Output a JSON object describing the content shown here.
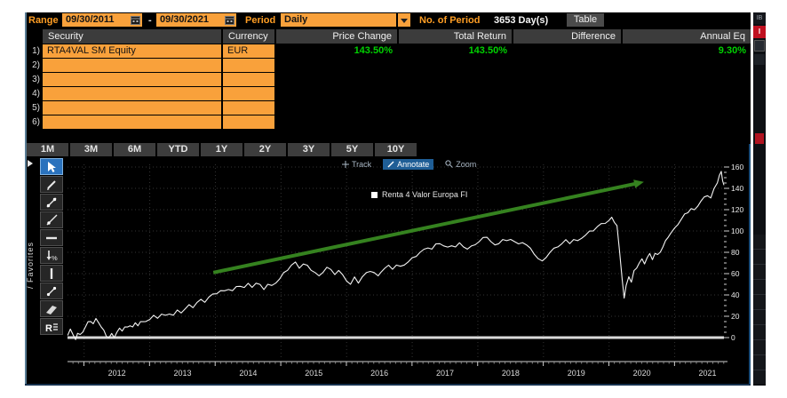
{
  "window": {
    "ib_label": "IB",
    "chat_header_fragment": "I"
  },
  "topbar": {
    "range_label": "Range",
    "range_start": "09/30/2011",
    "range_separator": "-",
    "range_end": "09/30/2021",
    "period_label": "Period",
    "period_value": "Daily",
    "num_period_label": "No. of Period",
    "num_period_value": "3653 Day(s)",
    "table_button": "Table"
  },
  "table": {
    "headers": [
      "Security",
      "Currency",
      "Price Change",
      "Total Return",
      "Difference",
      "Annual Eq"
    ],
    "rows": [
      {
        "num": "1)",
        "security": "RTA4VAL SM Equity",
        "currency": "EUR",
        "price_change": "143.50%",
        "total_return": "143.50%",
        "difference": "",
        "annual_eq": "9.30%"
      },
      {
        "num": "2)",
        "security": "",
        "currency": "",
        "price_change": "",
        "total_return": "",
        "difference": "",
        "annual_eq": ""
      },
      {
        "num": "3)",
        "security": "",
        "currency": "",
        "price_change": "",
        "total_return": "",
        "difference": "",
        "annual_eq": ""
      },
      {
        "num": "4)",
        "security": "",
        "currency": "",
        "price_change": "",
        "total_return": "",
        "difference": "",
        "annual_eq": ""
      },
      {
        "num": "5)",
        "security": "",
        "currency": "",
        "price_change": "",
        "total_return": "",
        "difference": "",
        "annual_eq": ""
      },
      {
        "num": "6)",
        "security": "",
        "currency": "",
        "price_change": "",
        "total_return": "",
        "difference": "",
        "annual_eq": ""
      }
    ]
  },
  "period_buttons": [
    "1M",
    "3M",
    "6M",
    "YTD",
    "1Y",
    "2Y",
    "3Y",
    "5Y",
    "10Y"
  ],
  "chart_toolbar": {
    "track": "Track",
    "annotate": "Annotate",
    "zoom": "Zoom"
  },
  "palette": {
    "favorites_label": "/ Favorites",
    "tool_icons": [
      "cursor-icon",
      "pencil-icon",
      "trendline-icon",
      "ray-icon",
      "horizontal-line-icon",
      "arrow-down-percent-icon",
      "vertical-line-icon",
      "segment-icon",
      "channel-icon",
      "regression-icon"
    ]
  },
  "legend": {
    "label": "Renta 4 Valor Europa FI",
    "marker_color": "#ffffff"
  },
  "colors": {
    "amber": "#ff9e24",
    "field_orange": "#f9a13b",
    "green": "#00d200",
    "annotate_blue": "#1f5e96",
    "arrow_green": "#35821f",
    "line_white": "#f4f4f4",
    "baseline": "#d9d9d9"
  },
  "chart_data": {
    "type": "line",
    "legend_entries": [
      "Renta 4 Valor Europa FI"
    ],
    "legend_position": "top-center",
    "grid": true,
    "xlim": [
      2011.747,
      2021.75
    ],
    "ylim": [
      -10,
      170
    ],
    "yticks": [
      0,
      20,
      40,
      60,
      80,
      100,
      120,
      140,
      160
    ],
    "y_minor_step": 5,
    "x_years": [
      2012,
      2013,
      2014,
      2015,
      2016,
      2017,
      2018,
      2019,
      2020,
      2021
    ],
    "baseline_value": 0,
    "series": [
      {
        "name": "Renta 4 Valor Europa FI",
        "points": [
          [
            2011.75,
            3
          ],
          [
            2011.79,
            8
          ],
          [
            2011.83,
            2
          ],
          [
            2011.87,
            -1
          ],
          [
            2011.9,
            4
          ],
          [
            2011.94,
            2
          ],
          [
            2011.98,
            6
          ],
          [
            2012.02,
            10
          ],
          [
            2012.06,
            14
          ],
          [
            2012.1,
            16
          ],
          [
            2012.14,
            13
          ],
          [
            2012.18,
            17
          ],
          [
            2012.22,
            15
          ],
          [
            2012.26,
            10
          ],
          [
            2012.3,
            6
          ],
          [
            2012.34,
            2
          ],
          [
            2012.38,
            0
          ],
          [
            2012.42,
            3
          ],
          [
            2012.46,
            1
          ],
          [
            2012.5,
            5
          ],
          [
            2012.54,
            8
          ],
          [
            2012.58,
            7
          ],
          [
            2012.62,
            10
          ],
          [
            2012.66,
            9
          ],
          [
            2012.7,
            12
          ],
          [
            2012.74,
            10
          ],
          [
            2012.78,
            13
          ],
          [
            2012.82,
            12
          ],
          [
            2012.86,
            15
          ],
          [
            2012.9,
            14
          ],
          [
            2012.94,
            16
          ],
          [
            2013,
            17
          ],
          [
            2013.06,
            20
          ],
          [
            2013.12,
            19
          ],
          [
            2013.18,
            22
          ],
          [
            2013.24,
            20
          ],
          [
            2013.3,
            23
          ],
          [
            2013.36,
            21
          ],
          [
            2013.42,
            25
          ],
          [
            2013.48,
            24
          ],
          [
            2013.54,
            27
          ],
          [
            2013.6,
            30
          ],
          [
            2013.66,
            29
          ],
          [
            2013.72,
            33
          ],
          [
            2013.78,
            35
          ],
          [
            2013.84,
            34
          ],
          [
            2013.9,
            38
          ],
          [
            2013.96,
            40
          ],
          [
            2014.02,
            42
          ],
          [
            2014.08,
            44
          ],
          [
            2014.14,
            43
          ],
          [
            2014.2,
            46
          ],
          [
            2014.26,
            44
          ],
          [
            2014.32,
            47
          ],
          [
            2014.38,
            49
          ],
          [
            2014.44,
            47
          ],
          [
            2014.5,
            50
          ],
          [
            2014.56,
            48
          ],
          [
            2014.62,
            51
          ],
          [
            2014.68,
            49
          ],
          [
            2014.74,
            46
          ],
          [
            2014.8,
            50
          ],
          [
            2014.86,
            48
          ],
          [
            2014.92,
            52
          ],
          [
            2014.98,
            55
          ],
          [
            2015.04,
            60
          ],
          [
            2015.1,
            64
          ],
          [
            2015.16,
            68
          ],
          [
            2015.22,
            70
          ],
          [
            2015.28,
            66
          ],
          [
            2015.34,
            69
          ],
          [
            2015.4,
            67
          ],
          [
            2015.46,
            64
          ],
          [
            2015.52,
            61
          ],
          [
            2015.58,
            57
          ],
          [
            2015.64,
            62
          ],
          [
            2015.7,
            66
          ],
          [
            2015.76,
            63
          ],
          [
            2015.82,
            60
          ],
          [
            2015.88,
            63
          ],
          [
            2015.94,
            58
          ],
          [
            2016,
            54
          ],
          [
            2016.06,
            50
          ],
          [
            2016.12,
            56
          ],
          [
            2016.18,
            52
          ],
          [
            2016.24,
            57
          ],
          [
            2016.3,
            60
          ],
          [
            2016.36,
            63
          ],
          [
            2016.42,
            61
          ],
          [
            2016.48,
            57
          ],
          [
            2016.52,
            62
          ],
          [
            2016.58,
            65
          ],
          [
            2016.64,
            67
          ],
          [
            2016.7,
            65
          ],
          [
            2016.76,
            68
          ],
          [
            2016.82,
            66
          ],
          [
            2016.88,
            69
          ],
          [
            2016.94,
            71
          ],
          [
            2017,
            74
          ],
          [
            2017.06,
            77
          ],
          [
            2017.12,
            80
          ],
          [
            2017.18,
            82
          ],
          [
            2017.24,
            85
          ],
          [
            2017.3,
            83
          ],
          [
            2017.36,
            87
          ],
          [
            2017.42,
            89
          ],
          [
            2017.48,
            86
          ],
          [
            2017.54,
            84
          ],
          [
            2017.6,
            87
          ],
          [
            2017.66,
            85
          ],
          [
            2017.72,
            88
          ],
          [
            2017.78,
            86
          ],
          [
            2017.84,
            83
          ],
          [
            2017.9,
            85
          ],
          [
            2017.96,
            88
          ],
          [
            2018.02,
            90
          ],
          [
            2018.08,
            93
          ],
          [
            2018.14,
            95
          ],
          [
            2018.2,
            90
          ],
          [
            2018.26,
            86
          ],
          [
            2018.32,
            89
          ],
          [
            2018.38,
            92
          ],
          [
            2018.44,
            90
          ],
          [
            2018.5,
            93
          ],
          [
            2018.56,
            90
          ],
          [
            2018.62,
            87
          ],
          [
            2018.68,
            90
          ],
          [
            2018.74,
            87
          ],
          [
            2018.8,
            83
          ],
          [
            2018.86,
            79
          ],
          [
            2018.92,
            74
          ],
          [
            2018.98,
            71
          ],
          [
            2019.04,
            76
          ],
          [
            2019.1,
            80
          ],
          [
            2019.16,
            83
          ],
          [
            2019.22,
            86
          ],
          [
            2019.28,
            88
          ],
          [
            2019.34,
            91
          ],
          [
            2019.4,
            89
          ],
          [
            2019.46,
            92
          ],
          [
            2019.52,
            90
          ],
          [
            2019.58,
            94
          ],
          [
            2019.64,
            96
          ],
          [
            2019.7,
            99
          ],
          [
            2019.76,
            101
          ],
          [
            2019.82,
            104
          ],
          [
            2019.88,
            106
          ],
          [
            2019.94,
            108
          ],
          [
            2020,
            110
          ],
          [
            2020.04,
            112
          ],
          [
            2020.08,
            109
          ],
          [
            2020.12,
            105
          ],
          [
            2020.16,
            80
          ],
          [
            2020.2,
            55
          ],
          [
            2020.23,
            37
          ],
          [
            2020.26,
            48
          ],
          [
            2020.3,
            58
          ],
          [
            2020.34,
            52
          ],
          [
            2020.38,
            62
          ],
          [
            2020.42,
            66
          ],
          [
            2020.46,
            70
          ],
          [
            2020.5,
            73
          ],
          [
            2020.54,
            70
          ],
          [
            2020.58,
            75
          ],
          [
            2020.62,
            78
          ],
          [
            2020.66,
            74
          ],
          [
            2020.7,
            79
          ],
          [
            2020.74,
            77
          ],
          [
            2020.78,
            81
          ],
          [
            2020.82,
            85
          ],
          [
            2020.86,
            90
          ],
          [
            2020.9,
            95
          ],
          [
            2020.94,
            98
          ],
          [
            2021,
            102
          ],
          [
            2021.05,
            107
          ],
          [
            2021.1,
            111
          ],
          [
            2021.15,
            115
          ],
          [
            2021.2,
            118
          ],
          [
            2021.25,
            121
          ],
          [
            2021.3,
            119
          ],
          [
            2021.35,
            124
          ],
          [
            2021.4,
            128
          ],
          [
            2021.45,
            131
          ],
          [
            2021.5,
            134
          ],
          [
            2021.55,
            131
          ],
          [
            2021.6,
            139
          ],
          [
            2021.65,
            146
          ],
          [
            2021.68,
            152
          ],
          [
            2021.71,
            155
          ],
          [
            2021.73,
            148
          ],
          [
            2021.75,
            143
          ]
        ]
      }
    ],
    "annotation_arrow": {
      "x1": 2013.97,
      "y1": 61,
      "x2": 2020.53,
      "y2": 146,
      "color": "#35821f"
    }
  }
}
